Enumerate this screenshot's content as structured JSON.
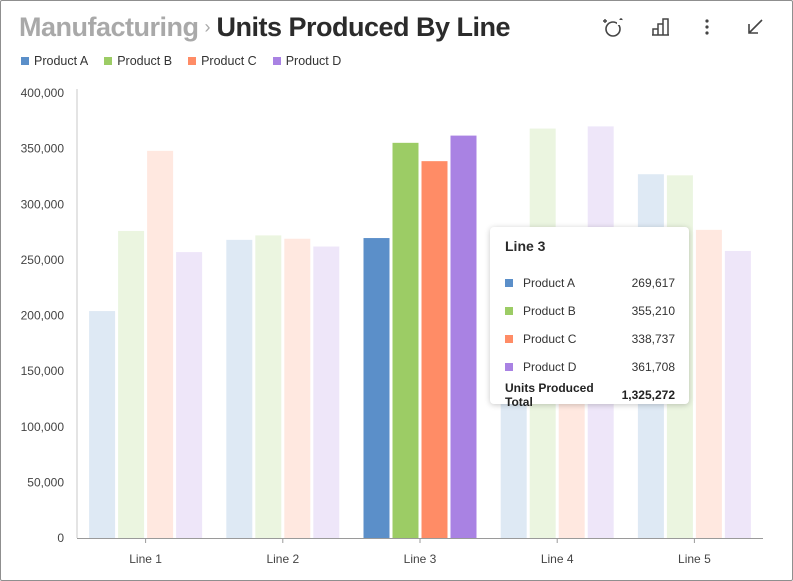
{
  "header": {
    "breadcrumb": "Manufacturing",
    "separator": "›",
    "title": "Units Produced By Line"
  },
  "toolbar": {
    "icons": [
      "insights-sparkle-icon",
      "bar-chart-icon",
      "more-vertical-icon",
      "minimize-arrow-icon"
    ]
  },
  "chart_data": {
    "type": "bar",
    "categories": [
      "Line 1",
      "Line 2",
      "Line 3",
      "Line 4",
      "Line 5"
    ],
    "series": [
      {
        "name": "Product A",
        "color": "#5b8fc9",
        "values": [
          204000,
          268000,
          269617,
          279000,
          327000
        ]
      },
      {
        "name": "Product B",
        "color": "#9ccc65",
        "values": [
          276000,
          272000,
          355210,
          368000,
          326000
        ]
      },
      {
        "name": "Product C",
        "color": "#ff8c66",
        "values": [
          348000,
          269000,
          338737,
          235000,
          277000
        ]
      },
      {
        "name": "Product D",
        "color": "#a982e3",
        "values": [
          257000,
          262000,
          361708,
          370000,
          258000
        ]
      }
    ],
    "highlighted_category": "Line 3",
    "ylim": [
      0,
      400000
    ],
    "yticks": [
      0,
      50000,
      100000,
      150000,
      200000,
      250000,
      300000,
      350000,
      400000
    ],
    "ytick_labels": [
      "0",
      "50,000",
      "100,000",
      "150,000",
      "200,000",
      "250,000",
      "300,000",
      "350,000",
      "400,000"
    ],
    "legend_position": "top-left",
    "grid": false
  },
  "tooltip": {
    "title": "Line 3",
    "rows": [
      {
        "name": "Product A",
        "value": "269,617",
        "color": "#5b8fc9"
      },
      {
        "name": "Product B",
        "value": "355,210",
        "color": "#9ccc65"
      },
      {
        "name": "Product C",
        "value": "338,737",
        "color": "#ff8c66"
      },
      {
        "name": "Product D",
        "value": "361,708",
        "color": "#a982e3"
      }
    ],
    "total_label": "Units Produced Total",
    "total_value": "1,325,272"
  }
}
